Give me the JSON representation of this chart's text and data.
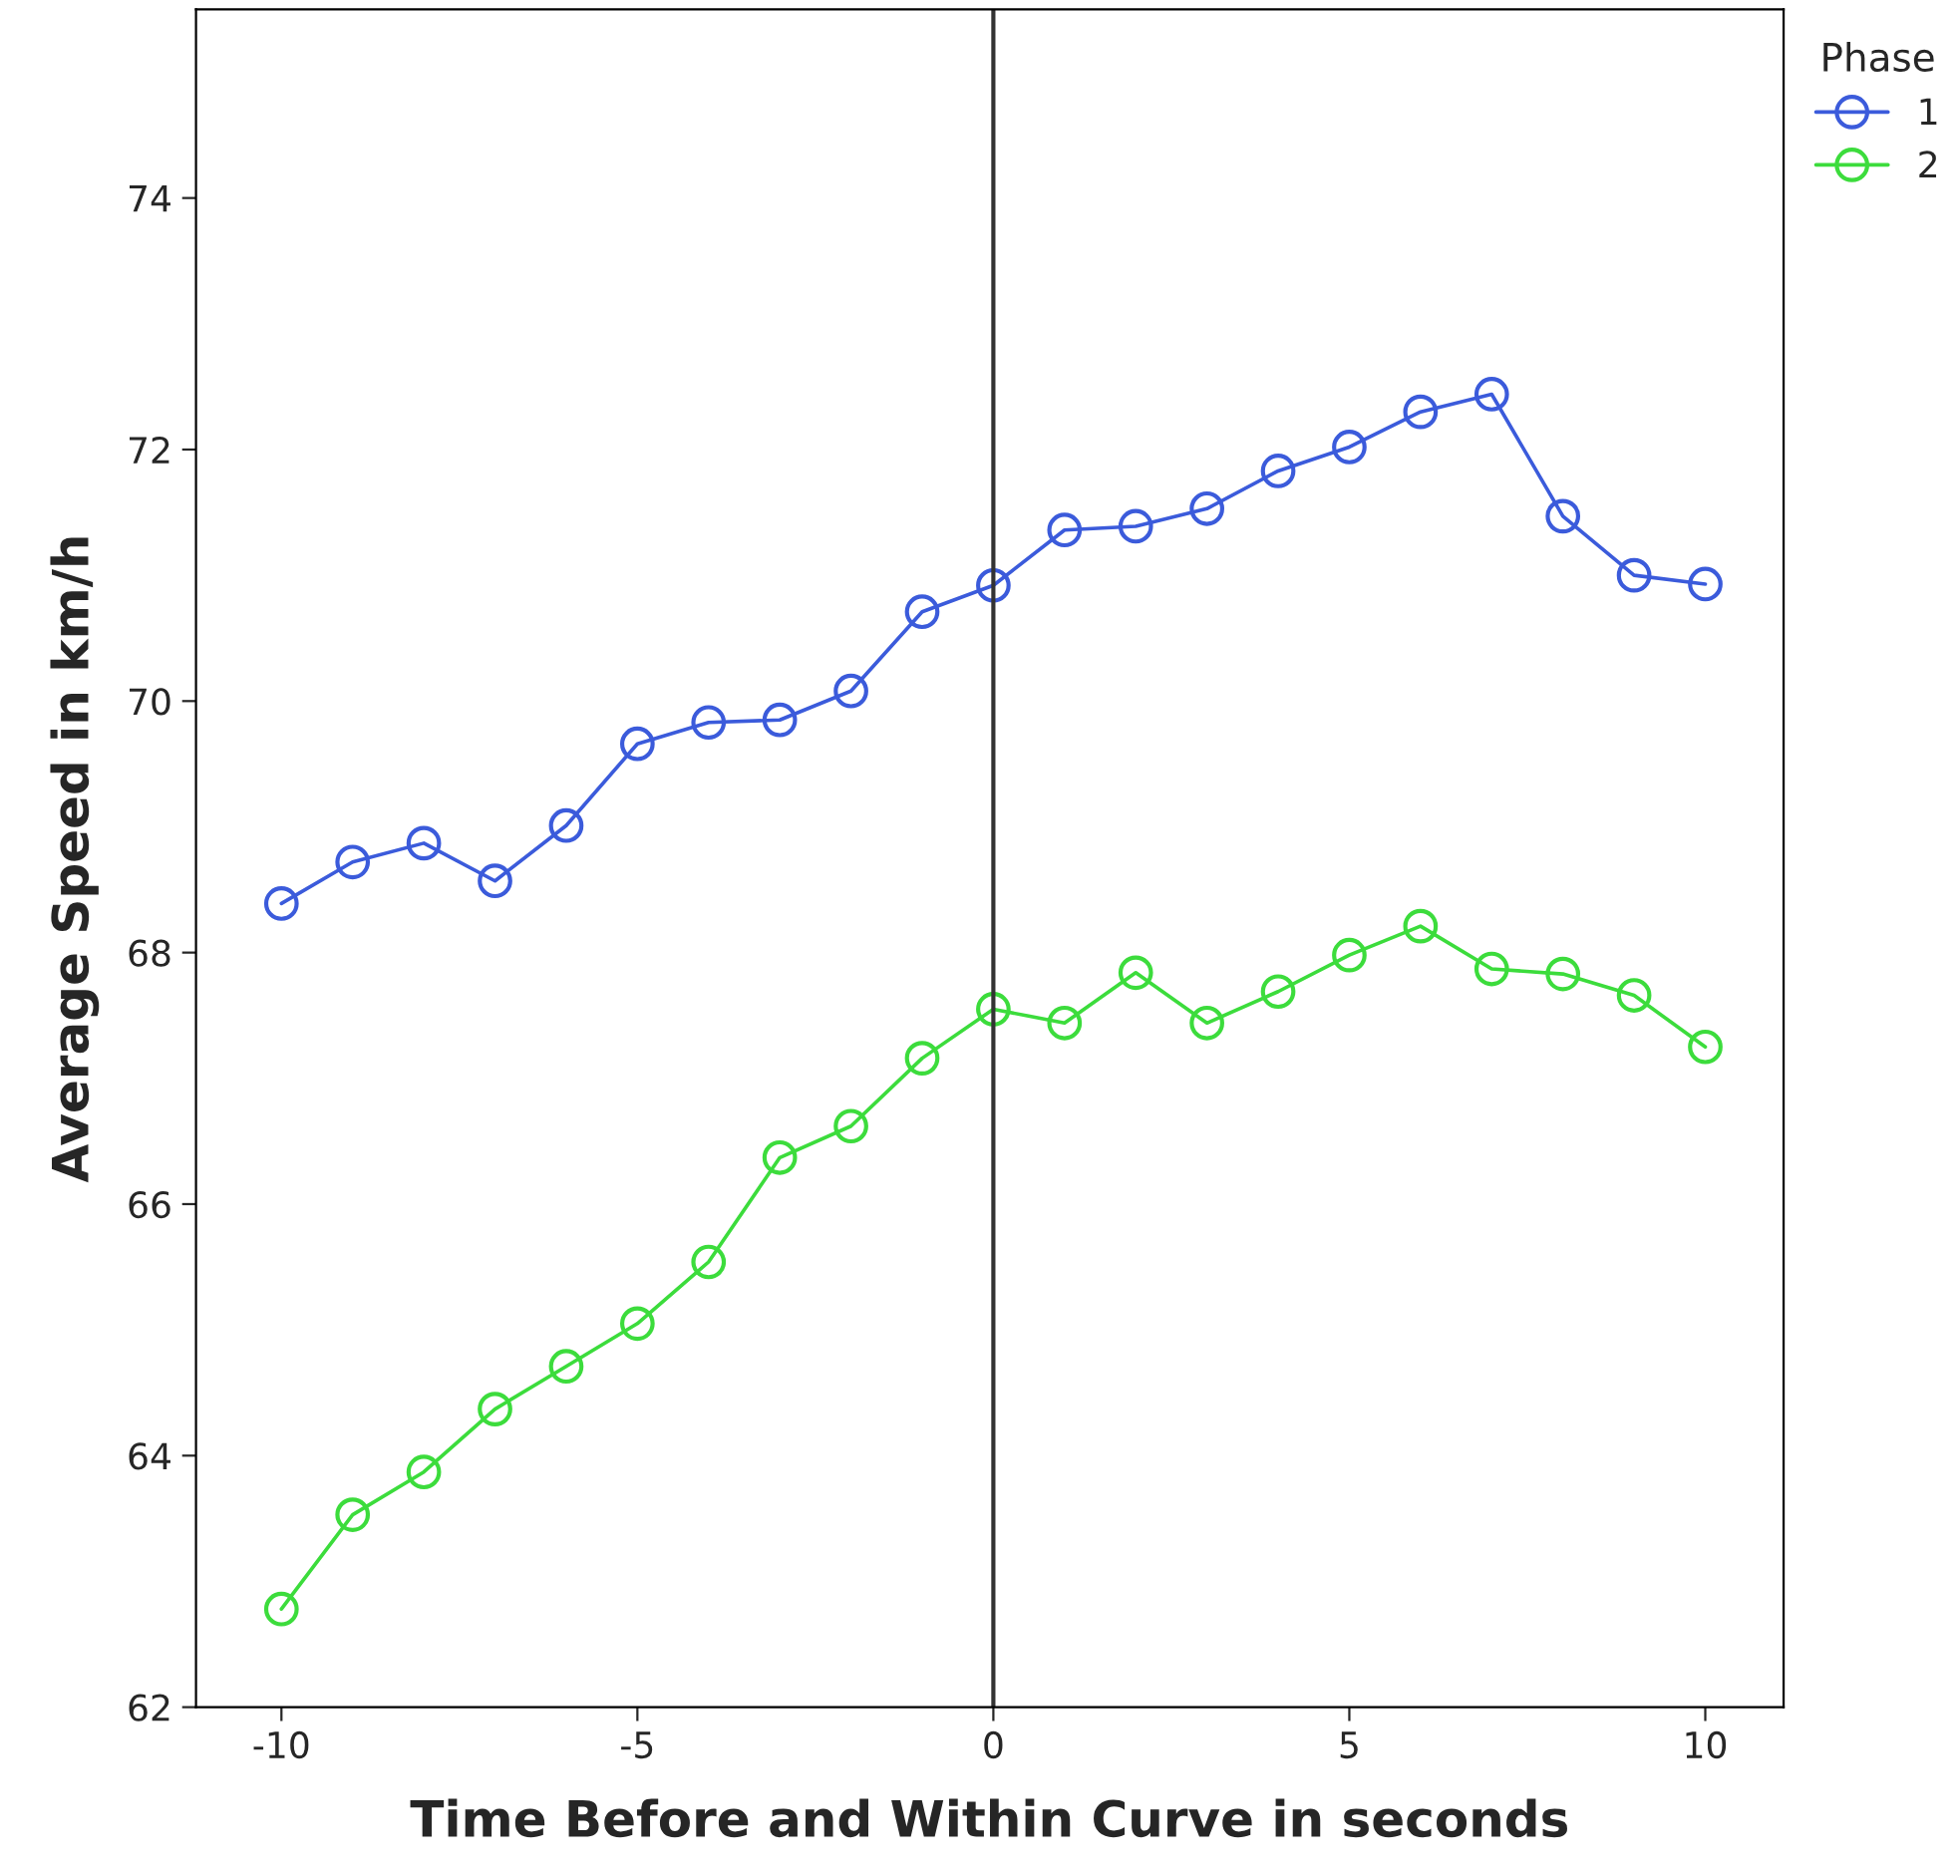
{
  "chart_data": {
    "type": "line",
    "xlabel": "Time Before and Within Curve in seconds",
    "ylabel": "Average Speed in km/h",
    "legend_title": "Phase",
    "x": [
      -10,
      -9,
      -8,
      -7,
      -6,
      -5,
      -4,
      -3,
      -2,
      -1,
      0,
      1,
      2,
      3,
      4,
      5,
      6,
      7,
      8,
      9,
      10
    ],
    "series": [
      {
        "name": "1",
        "color": "#3b5bdb",
        "values": [
          68.39,
          68.72,
          68.87,
          68.57,
          69.01,
          69.66,
          69.83,
          69.85,
          70.08,
          70.71,
          70.92,
          71.36,
          71.39,
          71.53,
          71.83,
          72.02,
          72.3,
          72.44,
          71.47,
          71.0,
          70.93
        ]
      },
      {
        "name": "2",
        "color": "#3cdc3c",
        "values": [
          62.78,
          63.53,
          63.87,
          64.37,
          64.71,
          65.05,
          65.54,
          66.37,
          66.62,
          67.16,
          67.55,
          67.44,
          67.84,
          67.44,
          67.69,
          67.98,
          68.21,
          67.87,
          67.83,
          67.66,
          67.25
        ]
      }
    ],
    "xlim": [
      -11.2,
      11.1
    ],
    "ylim": [
      62,
      75.5
    ],
    "xticks": [
      {
        "value": -10,
        "label": "-10"
      },
      {
        "value": -5,
        "label": "-5"
      },
      0,
      5,
      10
    ],
    "yticks": [
      62,
      64,
      66,
      68,
      70,
      72,
      74
    ],
    "ref_lines": [
      {
        "axis": "x",
        "value": 0,
        "color": "#333333",
        "line_style": "solid"
      }
    ],
    "grid": false,
    "legend": "top right",
    "marker": "circle",
    "line_style": "solid"
  }
}
